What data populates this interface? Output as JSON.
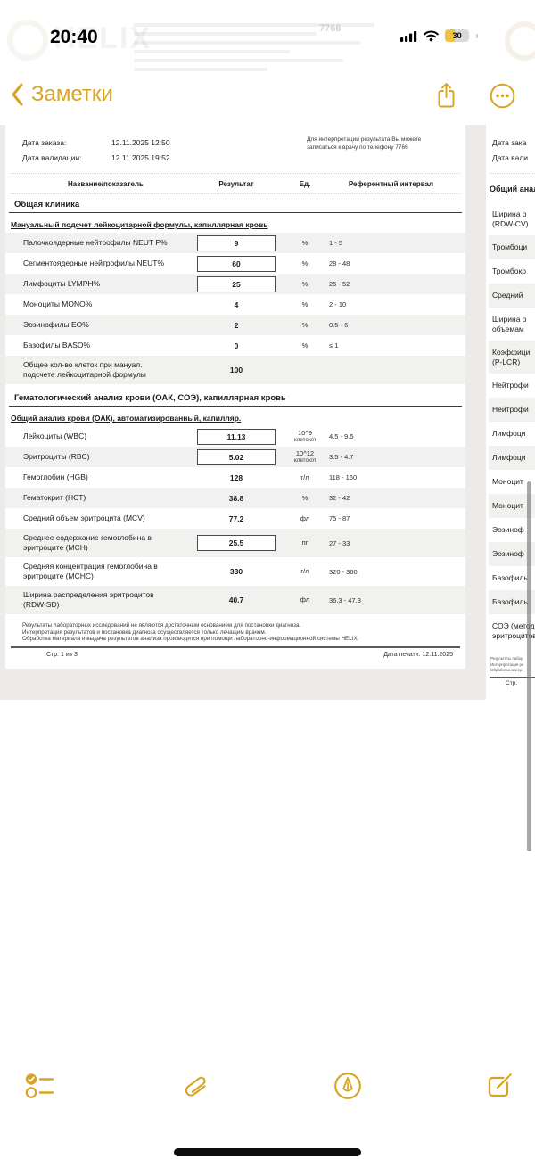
{
  "colors": {
    "accent": "#D9A426",
    "battery_yellow": "#F2C23C",
    "row_shade": "#F1F1EF",
    "backdrop": "#ECEBE9"
  },
  "status_bar": {
    "time": "20:40",
    "battery_level": "30"
  },
  "nav": {
    "back_label": "Заметки"
  },
  "watermark": {
    "brand": "HELIX",
    "phone": "7766"
  },
  "document": {
    "order_date_label": "Дата заказа:",
    "order_date": "12.11.2025  12:50",
    "validation_date_label": "Дата валидации:",
    "validation_date": "12.11.2025  19:52",
    "info_note_line1": "Для интерпретации результата Вы можете",
    "info_note_line2": "записаться к врачу по телефону 7766",
    "columns": {
      "name": "Название/показатель",
      "result": "Результат",
      "unit": "Ед.",
      "ref": "Референтный интервал"
    },
    "section1": {
      "title": "Общая клиника",
      "subtitle": "Мануальный подсчет лейкоцитарной формулы, капиллярная кровь",
      "rows": [
        {
          "name": "Палочкоядерные нейтрофилы NEUT P%",
          "result": "9",
          "boxed": true,
          "unit": "%",
          "ref": "1 - 5",
          "shaded": true
        },
        {
          "name": "Сегментоядерные нейтрофилы NEUT%",
          "result": "60",
          "boxed": true,
          "unit": "%",
          "ref": "28 - 48",
          "shaded": false
        },
        {
          "name": "Лимфоциты LYMPH%",
          "result": "25",
          "boxed": true,
          "unit": "%",
          "ref": "26 - 52",
          "shaded": true
        },
        {
          "name": "Моноциты MONO%",
          "result": "4",
          "boxed": false,
          "unit": "%",
          "ref": "2 - 10",
          "shaded": false
        },
        {
          "name": "Эозинофилы EO%",
          "result": "2",
          "boxed": false,
          "unit": "%",
          "ref": "0.5 - 6",
          "shaded": true
        },
        {
          "name": "Базофилы BASO%",
          "result": "0",
          "boxed": false,
          "unit": "%",
          "ref": "≤ 1",
          "shaded": false
        },
        {
          "name": "Общее кол-во клеток при мануал.",
          "name2": "подсчете лейкоцитарной формулы",
          "result": "100",
          "boxed": false,
          "unit": "",
          "ref": "",
          "shaded": true
        }
      ]
    },
    "section2": {
      "title": "Гематологический анализ крови (ОАК, СОЭ), капиллярная кровь",
      "subtitle": "Общий анализ крови (ОАК), автоматизированный, капилляр.",
      "rows": [
        {
          "name": "Лейкоциты (WBC)",
          "result": "11.13",
          "boxed": true,
          "unit": "10^9",
          "unit2": "клеток/л",
          "ref": "4.5 - 9.5",
          "shaded": false
        },
        {
          "name": "Эритроциты (RBC)",
          "result": "5.02",
          "boxed": true,
          "unit": "10^12",
          "unit2": "клеток/л",
          "ref": "3.5 - 4.7",
          "shaded": true
        },
        {
          "name": "Гемоглобин (HGB)",
          "result": "128",
          "boxed": false,
          "unit": "г/л",
          "ref": "118 - 160",
          "shaded": false
        },
        {
          "name": "Гематокрит (HCT)",
          "result": "38.8",
          "boxed": false,
          "unit": "%",
          "ref": "32 - 42",
          "shaded": true
        },
        {
          "name": "Средний объем эритроцита (MCV)",
          "result": "77.2",
          "boxed": false,
          "unit": "фл",
          "ref": "75 - 87",
          "shaded": false
        },
        {
          "name": "Среднее содержание гемоглобина в",
          "name2": "эритроците (MCH)",
          "result": "25.5",
          "boxed": true,
          "unit": "пг",
          "ref": "27 - 33",
          "shaded": true
        },
        {
          "name": "Средняя концентрация гемоглобина в",
          "name2": "эритроците (MCHC)",
          "result": "330",
          "boxed": false,
          "unit": "г/л",
          "ref": "320 - 360",
          "shaded": false
        },
        {
          "name": "Ширина распределения эритроцитов",
          "name2": "(RDW-SD)",
          "result": "40.7",
          "boxed": false,
          "unit": "фл",
          "ref": "36.3 - 47.3",
          "shaded": true
        }
      ]
    },
    "disclaimer_lines": [
      "Результаты лабораторных исследований не являются достаточным основанием для постановки диагноза.",
      "Интерпретация результатов и постановка диагноза осуществляется только лечащим врачом.",
      "Обработка материала и выдача результатов анализа производится при помощи лабораторно-информационной системы HELIX."
    ],
    "page_label": "Стр. 1 из 3",
    "print_date": "Дата печати:  12.11.2025"
  },
  "page2": {
    "order_date_label": "Дата зака",
    "validation_date_label": "Дата вали",
    "section_title": "Общий анал",
    "rows": [
      {
        "line1": "Ширина р",
        "line2": "(RDW-CV)",
        "shaded": false
      },
      {
        "line1": "Тромбоци",
        "shaded": true
      },
      {
        "line1": "Тромбокр",
        "shaded": false
      },
      {
        "line1": "Средний",
        "shaded": true
      },
      {
        "line1": "Ширина р",
        "line2": "объемам",
        "shaded": false
      },
      {
        "line1": "Коэффици",
        "line2": "(P-LCR)",
        "shaded": true
      },
      {
        "line1": "Нейтрофи",
        "shaded": false
      },
      {
        "line1": "Нейтрофи",
        "shaded": true
      },
      {
        "line1": "Лимфоци",
        "shaded": false
      },
      {
        "line1": "Лимфоци",
        "shaded": true
      },
      {
        "line1": "Моноцит",
        "shaded": false
      },
      {
        "line1": "Моноцит",
        "shaded": true
      },
      {
        "line1": "Эозиноф",
        "shaded": false
      },
      {
        "line1": "Эозиноф",
        "shaded": true
      },
      {
        "line1": "Базофиль",
        "shaded": false
      },
      {
        "line1": "Базофиль",
        "shaded": true
      },
      {
        "line1": "СОЭ (метод",
        "line2": "эритроцитов",
        "shaded": false
      }
    ],
    "footer_lines": [
      "Результаты лабор",
      "Интерпретация ре",
      "Обработка матер"
    ],
    "page_label": "Стр."
  },
  "toolbar": {
    "icons": [
      "checklist",
      "attachment",
      "markup",
      "compose"
    ]
  }
}
